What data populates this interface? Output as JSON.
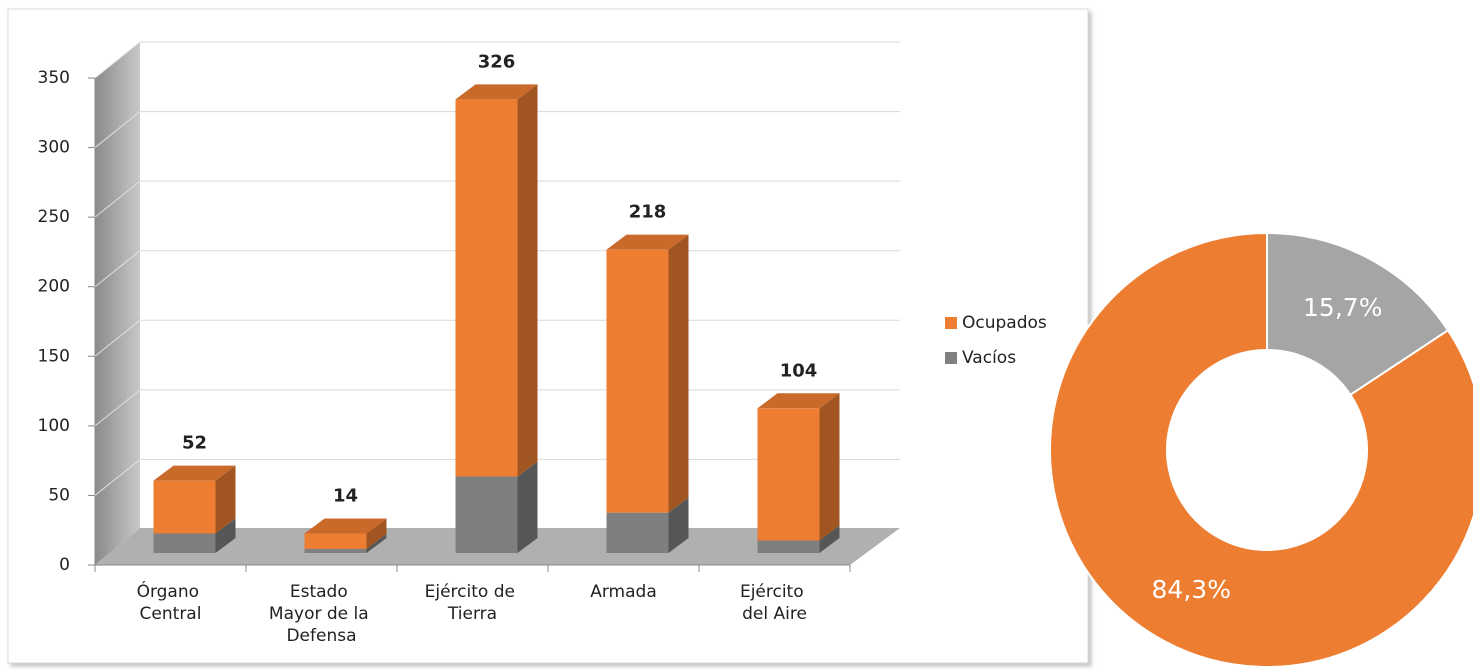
{
  "chart_data": [
    {
      "type": "bar3d_stacked",
      "categories": [
        "Órgano Central",
        "Estado Mayor de la Defensa",
        "Ejército de Tierra",
        "Armada",
        "Ejército del Aire"
      ],
      "series": [
        {
          "name": "Ocupados",
          "color": "#ed7d31",
          "values": [
            38,
            11,
            271,
            189,
            95
          ]
        },
        {
          "name": "Vacíos",
          "color": "#7f7f7f",
          "values": [
            14,
            3,
            55,
            29,
            9
          ]
        }
      ],
      "totals": [
        52,
        14,
        326,
        218,
        104
      ],
      "ylim": [
        0,
        350
      ],
      "yticks": [
        0,
        50,
        100,
        150,
        200,
        250,
        300,
        350
      ],
      "grid": true
    },
    {
      "type": "donut",
      "values": [
        15.7,
        84.3
      ],
      "value_labels": [
        "15,7%",
        "84,3%"
      ],
      "colors": [
        "#a5a5a5",
        "#ed7d31"
      ]
    }
  ]
}
